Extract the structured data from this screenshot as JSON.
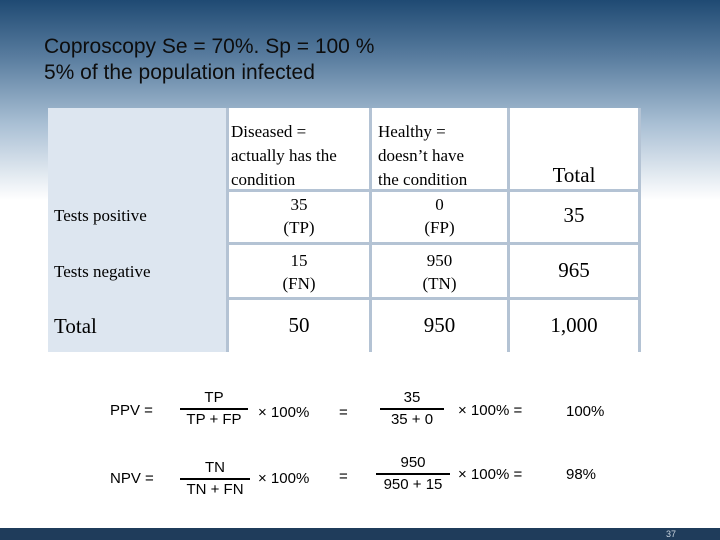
{
  "title": {
    "line1": "Coproscopy Se = 70%. Sp = 100 %",
    "line2": "5% of the population infected"
  },
  "table": {
    "col_diseased": [
      "Diseased =",
      "actually has the",
      "condition"
    ],
    "col_healthy": [
      "Healthy =",
      "doesn’t have",
      "the condition"
    ],
    "col_total": "Total",
    "rows": [
      {
        "label": "Tests positive",
        "diseased": [
          "35",
          "(TP)"
        ],
        "healthy": [
          "0",
          "(FP)"
        ],
        "total": "35"
      },
      {
        "label": "Tests negative",
        "diseased": [
          "15",
          "(FN)"
        ],
        "healthy": [
          "950",
          "(TN)"
        ],
        "total": "965"
      },
      {
        "label": "Total",
        "diseased": [
          "50"
        ],
        "healthy": [
          "950"
        ],
        "total": "1,000"
      }
    ]
  },
  "formulas": {
    "ppv": {
      "label": "PPV =",
      "num": "TP",
      "den": "TP + FP",
      "times": "× 100%",
      "eq": "=",
      "num2": "35",
      "den2": "35 + 0",
      "times2": "× 100%  =",
      "result": "100%"
    },
    "npv": {
      "label": "NPV =",
      "num": "TN",
      "den": "TN + FN",
      "times": "× 100%",
      "eq": "=",
      "num2": "950",
      "den2": "950 + 15",
      "times2": "× 100%  =",
      "result": "98%"
    }
  },
  "page_number": "37"
}
